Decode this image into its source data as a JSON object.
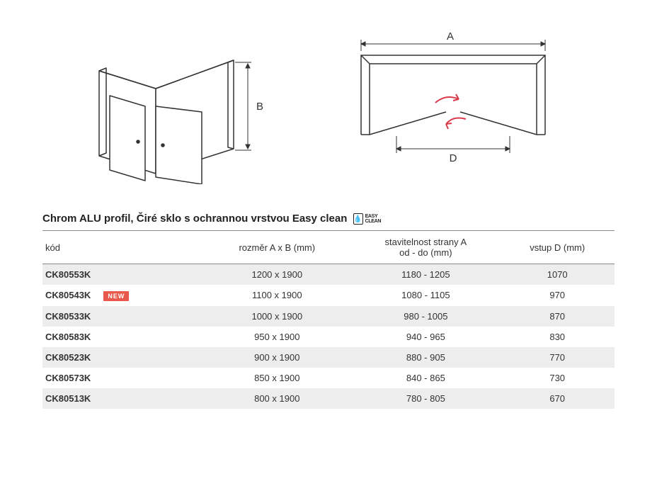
{
  "diagrams": {
    "iso": {
      "label_B": "B"
    },
    "top": {
      "label_A": "A",
      "label_D": "D",
      "arrow_color": "#d93a4a"
    }
  },
  "title": "Chrom ALU profil, Čiré sklo s ochrannou vrstvou Easy clean",
  "easy_clean_label": "EASY\nCLEAN",
  "headers": {
    "code": "kód",
    "size": "rozměr A x B  (mm)",
    "adjust": "stavitelnost strany A\nod - do  (mm)",
    "entry": "vstup D (mm)"
  },
  "new_label": "NEW",
  "rows": [
    {
      "code": "CK80553K",
      "size": "1200 x 1900",
      "adjust": "1180 - 1205",
      "entry": "1070",
      "new": false,
      "shade": true
    },
    {
      "code": "CK80543K",
      "size": "1100 x 1900",
      "adjust": "1080 - 1105",
      "entry": "970",
      "new": true,
      "shade": false
    },
    {
      "code": "CK80533K",
      "size": "1000 x 1900",
      "adjust": "980 - 1005",
      "entry": "870",
      "new": false,
      "shade": true
    },
    {
      "code": "CK80583K",
      "size": "950 x 1900",
      "adjust": "940 - 965",
      "entry": "830",
      "new": false,
      "shade": false
    },
    {
      "code": "CK80523K",
      "size": "900 x 1900",
      "adjust": "880 - 905",
      "entry": "770",
      "new": false,
      "shade": true
    },
    {
      "code": "CK80573K",
      "size": "850 x 1900",
      "adjust": "840 - 865",
      "entry": "730",
      "new": false,
      "shade": false
    },
    {
      "code": "CK80513K",
      "size": "800 x 1900",
      "adjust": "780 - 805",
      "entry": "670",
      "new": false,
      "shade": true
    }
  ],
  "colors": {
    "row_shade": "#ededed",
    "border": "#888888",
    "text": "#333333",
    "new_bg": "#e8594b"
  }
}
